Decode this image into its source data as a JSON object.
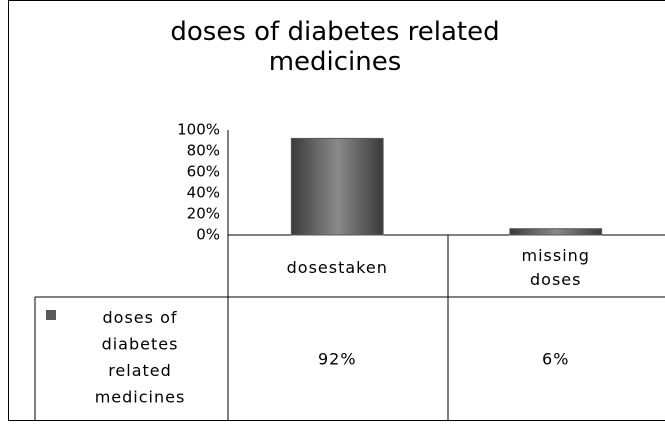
{
  "chart_data": {
    "type": "bar",
    "title": "doses of diabetes related medicines",
    "categories": [
      "dosestaken",
      "missing doses"
    ],
    "series": [
      {
        "name": "doses of diabetes related medicines",
        "color": "#595959",
        "values": [
          92,
          6
        ],
        "value_labels": [
          "92%",
          "6%"
        ]
      }
    ],
    "ylim": [
      0,
      100
    ],
    "yticks": [
      {
        "value": 0,
        "label": "0%"
      },
      {
        "value": 20,
        "label": "20%"
      },
      {
        "value": 40,
        "label": "40%"
      },
      {
        "value": 60,
        "label": "60%"
      },
      {
        "value": 80,
        "label": "80%"
      },
      {
        "value": 100,
        "label": "100%"
      }
    ],
    "grid": false,
    "legend": "table"
  }
}
